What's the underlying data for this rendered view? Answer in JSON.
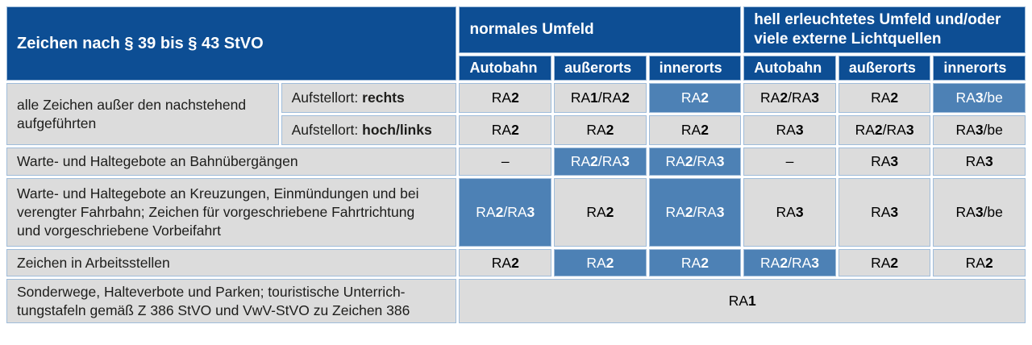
{
  "colors": {
    "header_blue": "#0d4e94",
    "highlight_blue": "#4d81b5",
    "cell_gray": "#dcdcdc",
    "grid_blue": "#9fbcda",
    "text_dark": "#1d1d1b"
  },
  "header": {
    "title": "Zeichen nach § 39 bis § 43 StVO",
    "group_normal": "normales Umfeld",
    "group_bright": "hell erleuchtetes Umfeld und/oder\nviele externe Lichtquellen",
    "cols": [
      "Autobahn",
      "außerorts",
      "innerorts",
      "Autobahn",
      "außerorts",
      "innerorts"
    ]
  },
  "rows": [
    {
      "label": "alle Zeichen außer den nachstehend\naufgeführten",
      "sub": [
        {
          "aufstellort_prefix": "Aufstellort:",
          "aufstellort_value": "rechts",
          "cells": [
            {
              "v": "RA2",
              "hl": false
            },
            {
              "v": "RA1/RA2",
              "hl": false
            },
            {
              "v": "RA2",
              "hl": true
            },
            {
              "v": "RA2/RA3",
              "hl": false
            },
            {
              "v": "RA2",
              "hl": false
            },
            {
              "v": "RA3/be",
              "hl": true
            }
          ]
        },
        {
          "aufstellort_prefix": "Aufstellort:",
          "aufstellort_value": "hoch/links",
          "cells": [
            {
              "v": "RA2",
              "hl": false
            },
            {
              "v": "RA2",
              "hl": false
            },
            {
              "v": "RA2",
              "hl": false
            },
            {
              "v": "RA3",
              "hl": false
            },
            {
              "v": "RA2/RA3",
              "hl": false
            },
            {
              "v": "RA3/be",
              "hl": false
            }
          ]
        }
      ]
    },
    {
      "label": "Warte- und Haltegebote an Bahnübergängen",
      "cells": [
        {
          "v": "–",
          "hl": false
        },
        {
          "v": "RA2/RA3",
          "hl": true
        },
        {
          "v": "RA2/RA3",
          "hl": true
        },
        {
          "v": "–",
          "hl": false
        },
        {
          "v": "RA3",
          "hl": false
        },
        {
          "v": "RA3",
          "hl": false
        }
      ]
    },
    {
      "label": "Warte- und Haltegebote an Kreuzungen, Einmündungen und bei\nverengter Fahrbahn; Zeichen für vorgeschriebene Fahrtrichtung\nund vorgeschriebene Vorbeifahrt",
      "cells": [
        {
          "v": "RA2/RA3",
          "hl": true
        },
        {
          "v": "RA2",
          "hl": false
        },
        {
          "v": "RA2/RA3",
          "hl": true
        },
        {
          "v": "RA3",
          "hl": false
        },
        {
          "v": "RA3",
          "hl": false
        },
        {
          "v": "RA3/be",
          "hl": false
        }
      ]
    },
    {
      "label": "Zeichen in Arbeitsstellen",
      "cells": [
        {
          "v": "RA2",
          "hl": false
        },
        {
          "v": "RA2",
          "hl": true
        },
        {
          "v": "RA2",
          "hl": true
        },
        {
          "v": "RA2/RA3",
          "hl": true
        },
        {
          "v": "RA2",
          "hl": false
        },
        {
          "v": "RA2",
          "hl": false
        }
      ]
    },
    {
      "label": "Sonderwege, Halteverbote und Parken; touristische Unterrich-\ntungstafeln gemäß Z 386 StVO und VwV-StVO zu Zeichen 386",
      "merged_value": "RA1"
    }
  ]
}
